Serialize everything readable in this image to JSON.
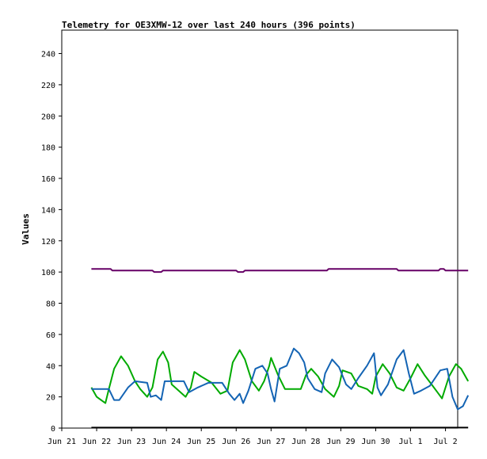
{
  "chart_data": {
    "type": "line",
    "title": "Telemetry for OE3XMW-12 over last 240 hours (396 points)",
    "ylabel": "Values",
    "xlabel": "",
    "ylim": [
      0,
      255
    ],
    "xlim": [
      0,
      11.35
    ],
    "yticks": [
      0,
      20,
      40,
      60,
      80,
      100,
      120,
      140,
      160,
      180,
      200,
      220,
      240
    ],
    "xticks": [
      {
        "label": "Jun 21",
        "x": 0
      },
      {
        "label": "Jun 22",
        "x": 1
      },
      {
        "label": "Jun 23",
        "x": 2
      },
      {
        "label": "Jun 24",
        "x": 3
      },
      {
        "label": "Jun 25",
        "x": 4
      },
      {
        "label": "Jun 26",
        "x": 5
      },
      {
        "label": "Jun 27",
        "x": 6
      },
      {
        "label": "Jun 28",
        "x": 7
      },
      {
        "label": "Jun 29",
        "x": 8
      },
      {
        "label": "Jun 30",
        "x": 9
      },
      {
        "label": "Jul 1",
        "x": 10
      },
      {
        "label": "Jul 2",
        "x": 11
      }
    ],
    "grid": false,
    "colors": {
      "purple": "#660066",
      "green": "#00aa00",
      "blue": "#1464b4",
      "black": "#000000"
    },
    "series": [
      {
        "color": "#660066",
        "points": [
          [
            0.85,
            102
          ],
          [
            1.4,
            102
          ],
          [
            1.45,
            101
          ],
          [
            2.6,
            101
          ],
          [
            2.65,
            100
          ],
          [
            2.85,
            100
          ],
          [
            2.9,
            101
          ],
          [
            5.0,
            101
          ],
          [
            5.05,
            100
          ],
          [
            5.2,
            100
          ],
          [
            5.25,
            101
          ],
          [
            7.6,
            101
          ],
          [
            7.65,
            102
          ],
          [
            9.6,
            102
          ],
          [
            9.65,
            101
          ],
          [
            10.8,
            101
          ],
          [
            10.85,
            102
          ],
          [
            10.95,
            102
          ],
          [
            11.0,
            101
          ],
          [
            11.65,
            101
          ]
        ]
      },
      {
        "color": "#00aa00",
        "points": [
          [
            0.85,
            26
          ],
          [
            1.0,
            20
          ],
          [
            1.25,
            16
          ],
          [
            1.35,
            25
          ],
          [
            1.5,
            38
          ],
          [
            1.7,
            46
          ],
          [
            1.9,
            40
          ],
          [
            2.1,
            30
          ],
          [
            2.25,
            25
          ],
          [
            2.45,
            20
          ],
          [
            2.6,
            26
          ],
          [
            2.75,
            44
          ],
          [
            2.9,
            49
          ],
          [
            3.05,
            42
          ],
          [
            3.15,
            28
          ],
          [
            3.35,
            24
          ],
          [
            3.55,
            20
          ],
          [
            3.7,
            26
          ],
          [
            3.8,
            36
          ],
          [
            4.0,
            33
          ],
          [
            4.3,
            29
          ],
          [
            4.55,
            22
          ],
          [
            4.75,
            24
          ],
          [
            4.9,
            42
          ],
          [
            5.1,
            50
          ],
          [
            5.25,
            44
          ],
          [
            5.45,
            30
          ],
          [
            5.65,
            24
          ],
          [
            5.8,
            30
          ],
          [
            5.95,
            40
          ],
          [
            6.0,
            45
          ],
          [
            6.2,
            34
          ],
          [
            6.4,
            25
          ],
          [
            6.65,
            25
          ],
          [
            6.85,
            25
          ],
          [
            7.0,
            34
          ],
          [
            7.15,
            38
          ],
          [
            7.35,
            33
          ],
          [
            7.55,
            25
          ],
          [
            7.8,
            20
          ],
          [
            7.95,
            27
          ],
          [
            8.05,
            37
          ],
          [
            8.3,
            35
          ],
          [
            8.5,
            27
          ],
          [
            8.75,
            25
          ],
          [
            8.9,
            22
          ],
          [
            9.0,
            33
          ],
          [
            9.2,
            41
          ],
          [
            9.4,
            35
          ],
          [
            9.6,
            26
          ],
          [
            9.8,
            24
          ],
          [
            10.0,
            32
          ],
          [
            10.2,
            41
          ],
          [
            10.4,
            34
          ],
          [
            10.6,
            28
          ],
          [
            10.8,
            22
          ],
          [
            10.9,
            19
          ],
          [
            11.1,
            33
          ],
          [
            11.3,
            41
          ],
          [
            11.45,
            38
          ],
          [
            11.65,
            30
          ]
        ]
      },
      {
        "color": "#1464b4",
        "points": [
          [
            0.85,
            25
          ],
          [
            1.35,
            25
          ],
          [
            1.5,
            18
          ],
          [
            1.65,
            18
          ],
          [
            1.9,
            26
          ],
          [
            2.1,
            30
          ],
          [
            2.45,
            29
          ],
          [
            2.55,
            20
          ],
          [
            2.7,
            21
          ],
          [
            2.85,
            18
          ],
          [
            2.95,
            30
          ],
          [
            3.5,
            30
          ],
          [
            3.65,
            23
          ],
          [
            3.9,
            26
          ],
          [
            4.2,
            29
          ],
          [
            4.6,
            29
          ],
          [
            4.8,
            22
          ],
          [
            4.95,
            18
          ],
          [
            5.1,
            22
          ],
          [
            5.2,
            16
          ],
          [
            5.35,
            24
          ],
          [
            5.55,
            38
          ],
          [
            5.75,
            40
          ],
          [
            5.9,
            35
          ],
          [
            6.0,
            25
          ],
          [
            6.1,
            17
          ],
          [
            6.25,
            38
          ],
          [
            6.45,
            40
          ],
          [
            6.65,
            51
          ],
          [
            6.8,
            48
          ],
          [
            6.95,
            42
          ],
          [
            7.05,
            32
          ],
          [
            7.25,
            25
          ],
          [
            7.45,
            23
          ],
          [
            7.55,
            35
          ],
          [
            7.75,
            44
          ],
          [
            7.95,
            39
          ],
          [
            8.15,
            28
          ],
          [
            8.3,
            25
          ],
          [
            8.5,
            32
          ],
          [
            8.75,
            40
          ],
          [
            8.95,
            48
          ],
          [
            9.05,
            26
          ],
          [
            9.15,
            21
          ],
          [
            9.35,
            28
          ],
          [
            9.6,
            44
          ],
          [
            9.8,
            50
          ],
          [
            9.95,
            35
          ],
          [
            10.1,
            22
          ],
          [
            10.3,
            24
          ],
          [
            10.55,
            27
          ],
          [
            10.85,
            37
          ],
          [
            11.05,
            38
          ],
          [
            11.2,
            20
          ],
          [
            11.35,
            12
          ],
          [
            11.5,
            14
          ],
          [
            11.65,
            21
          ]
        ]
      },
      {
        "color": "#000000",
        "points": [
          [
            0.85,
            0.3
          ],
          [
            11.65,
            0.3
          ]
        ]
      }
    ]
  }
}
